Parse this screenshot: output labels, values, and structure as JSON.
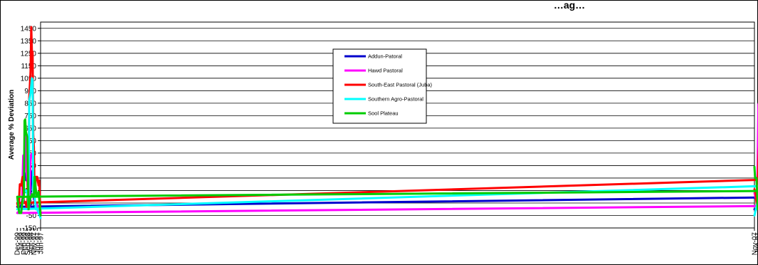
{
  "chart_data": {
    "type": "line",
    "title": "…ag…",
    "ylabel": "Average % Deviation",
    "xlabel": "",
    "ylim": [
      -150,
      1500
    ],
    "y_ticks": [
      -150,
      -50,
      50,
      150,
      250,
      350,
      450,
      550,
      650,
      750,
      850,
      950,
      1050,
      1150,
      1250,
      1350,
      1450
    ],
    "x_tick_labels": [
      "Jan-97",
      "Jun-97",
      "Nov-97",
      "Apr-98",
      "Sep-98",
      "Feb-99",
      "Jul-99",
      "Dec-99",
      "May-00",
      "Oct-00",
      "Mar-01",
      "Aug-01",
      "Jan-02",
      "Jun-02",
      "Nov-02",
      "Apr-03",
      "Sep-03",
      "Feb-04",
      "Jul-04",
      "Dec-04",
      "May-05",
      "Oct-05",
      "Mar-06",
      "Aug-06",
      "Jan-07",
      "Jun-07",
      "Nov-07"
    ],
    "grid": "horizontal",
    "legend_position": "top-center",
    "series": [
      {
        "name": "Addun-Patoral",
        "color": "#0000CC",
        "points": [
          [
            "Jan-97",
            -50
          ],
          [
            "Jun-97",
            30
          ],
          [
            "Nov-97",
            80
          ],
          [
            "Jan-98",
            310
          ],
          [
            "Mar-98",
            250
          ],
          [
            "May-98",
            30
          ],
          [
            "Jul-98",
            0
          ],
          [
            "Sep-98",
            270
          ],
          [
            "Oct-98",
            230
          ],
          [
            "Dec-98",
            280
          ],
          [
            "Feb-99",
            300
          ],
          [
            "Mar-99",
            120
          ],
          [
            "Jul-99",
            10
          ],
          [
            "Dec-99",
            20
          ],
          [
            "Mar-00",
            100
          ],
          [
            "May-00",
            90
          ],
          [
            "Aug-00",
            40
          ],
          [
            "Oct-00",
            0
          ],
          [
            "Mar-01",
            -10
          ],
          [
            "Aug-01",
            -20
          ],
          [
            "Jan-02",
            0
          ],
          [
            "Jun-02",
            0
          ],
          [
            "Nov-02",
            40
          ],
          [
            "Apr-03",
            30
          ],
          [
            "Sep-03",
            -10
          ],
          [
            "Feb-04",
            60
          ],
          [
            "Jul-04",
            -10
          ],
          [
            "Dec-04",
            0
          ],
          [
            "May-05",
            0
          ],
          [
            "Oct-05",
            -30
          ],
          [
            "Mar-06",
            0
          ],
          [
            "Aug-06",
            10
          ],
          [
            "Nov-06",
            210
          ],
          [
            "Jan-07",
            180
          ],
          [
            "Apr-07",
            150
          ],
          [
            "Jun-07",
            0
          ],
          [
            "Nov-07",
            0
          ]
        ]
      },
      {
        "name": "Hawd Pastoral",
        "color": "#FF00FF",
        "points": [
          [
            "Jan-97",
            -30
          ],
          [
            "Jun-97",
            30
          ],
          [
            "Oct-97",
            50
          ],
          [
            "Dec-97",
            450
          ],
          [
            "Mar-98",
            440
          ],
          [
            "Apr-98",
            380
          ],
          [
            "Jun-98",
            0
          ],
          [
            "Sep-98",
            230
          ],
          [
            "Nov-98",
            350
          ],
          [
            "Dec-98",
            600
          ],
          [
            "Jan-99",
            440
          ],
          [
            "Mar-99",
            430
          ],
          [
            "May-99",
            10
          ],
          [
            "Dec-99",
            -30
          ],
          [
            "May-00",
            30
          ],
          [
            "Oct-00",
            -30
          ],
          [
            "Mar-01",
            -10
          ],
          [
            "Aug-01",
            -40
          ],
          [
            "Jan-02",
            -20
          ],
          [
            "Jun-02",
            0
          ],
          [
            "Nov-02",
            -20
          ],
          [
            "Apr-03",
            -10
          ],
          [
            "Sep-03",
            0
          ],
          [
            "Jan-04",
            450
          ],
          [
            "Apr-04",
            460
          ],
          [
            "May-04",
            480
          ],
          [
            "Jun-04",
            -10
          ],
          [
            "Dec-04",
            20
          ],
          [
            "May-05",
            0
          ],
          [
            "Oct-05",
            -30
          ],
          [
            "Mar-06",
            20
          ],
          [
            "Sep-06",
            50
          ],
          [
            "Nov-06",
            960
          ],
          [
            "Jan-07",
            900
          ],
          [
            "May-07",
            840
          ],
          [
            "Jul-07",
            50
          ],
          [
            "Nov-07",
            130
          ]
        ]
      },
      {
        "name": "South-East Pastoral (Juba)",
        "color": "#FF0000",
        "points": [
          [
            "Jan-97",
            -50
          ],
          [
            "Mar-97",
            230
          ],
          [
            "Apr-97",
            190
          ],
          [
            "Jun-97",
            260
          ],
          [
            "Aug-97",
            260
          ],
          [
            "Oct-97",
            90
          ],
          [
            "Nov-97",
            500
          ],
          [
            "Dec-97",
            600
          ],
          [
            "Jan-98",
            1260
          ],
          [
            "Feb-98",
            1270
          ],
          [
            "Mar-98",
            1460
          ],
          [
            "Apr-98",
            1100
          ],
          [
            "Jun-98",
            900
          ],
          [
            "Jul-98",
            0
          ],
          [
            "Aug-98",
            250
          ],
          [
            "Sep-98",
            0
          ],
          [
            "Dec-98",
            60
          ],
          [
            "Feb-99",
            50
          ],
          [
            "Apr-99",
            260
          ],
          [
            "Jun-99",
            190
          ],
          [
            "Aug-99",
            200
          ],
          [
            "Oct-99",
            0
          ],
          [
            "Dec-99",
            50
          ],
          [
            "Mar-00",
            250
          ],
          [
            "Apr-00",
            310
          ],
          [
            "Jun-00",
            200
          ],
          [
            "Aug-00",
            50
          ],
          [
            "Oct-00",
            100
          ],
          [
            "Feb-01",
            200
          ],
          [
            "Apr-01",
            280
          ],
          [
            "Jun-01",
            180
          ],
          [
            "Aug-01",
            0
          ],
          [
            "Jan-02",
            50
          ],
          [
            "Apr-02",
            230
          ],
          [
            "Jun-02",
            180
          ],
          [
            "Aug-02",
            0
          ],
          [
            "Nov-02",
            200
          ],
          [
            "Jan-03",
            310
          ],
          [
            "Feb-03",
            260
          ],
          [
            "Jun-03",
            160
          ],
          [
            "Aug-03",
            0
          ],
          [
            "Sep-03",
            200
          ],
          [
            "Dec-03",
            320
          ],
          [
            "Jan-04",
            300
          ],
          [
            "Mar-04",
            350
          ],
          [
            "Apr-04",
            250
          ],
          [
            "Jun-04",
            0
          ],
          [
            "Aug-04",
            0
          ],
          [
            "Oct-04",
            200
          ],
          [
            "Feb-05",
            290
          ],
          [
            "Apr-05",
            200
          ],
          [
            "May-05",
            30
          ],
          [
            "Jul-05",
            -40
          ],
          [
            "Oct-05",
            0
          ],
          [
            "Jan-06",
            100
          ],
          [
            "Mar-06",
            270
          ],
          [
            "May-06",
            270
          ],
          [
            "Aug-06",
            50
          ],
          [
            "Oct-06",
            350
          ],
          [
            "Jan-07",
            570
          ],
          [
            "Mar-07",
            630
          ],
          [
            "May-07",
            400
          ],
          [
            "Jul-07",
            0
          ],
          [
            "Sep-07",
            120
          ],
          [
            "Nov-07",
            160
          ]
        ]
      },
      {
        "name": "Southern Agro-Pastoral",
        "color": "#00FFFF",
        "points": [
          [
            "Jan-97",
            -70
          ],
          [
            "Jun-97",
            0
          ],
          [
            "Aug-97",
            0
          ],
          [
            "Oct-97",
            100
          ],
          [
            "Dec-97",
            150
          ],
          [
            "Jan-98",
            1040
          ],
          [
            "Feb-98",
            1050
          ],
          [
            "Apr-98",
            930
          ],
          [
            "Jun-98",
            870
          ],
          [
            "Jul-98",
            0
          ],
          [
            "Aug-98",
            100
          ],
          [
            "Oct-98",
            150
          ],
          [
            "Jan-99",
            150
          ],
          [
            "Mar-99",
            80
          ],
          [
            "Jun-99",
            0
          ],
          [
            "Dec-99",
            0
          ],
          [
            "Jan-00",
            200
          ],
          [
            "Mar-00",
            160
          ],
          [
            "May-00",
            190
          ],
          [
            "Jul-00",
            100
          ],
          [
            "Aug-00",
            -30
          ],
          [
            "Oct-00",
            -10
          ],
          [
            "Mar-01",
            -50
          ],
          [
            "Aug-01",
            -80
          ],
          [
            "Jan-02",
            -50
          ],
          [
            "Jun-02",
            -40
          ],
          [
            "Nov-02",
            -50
          ],
          [
            "Jan-03",
            10
          ],
          [
            "Apr-03",
            0
          ],
          [
            "Sep-03",
            -70
          ],
          [
            "Jan-04",
            150
          ],
          [
            "Apr-04",
            140
          ],
          [
            "Jun-04",
            0
          ],
          [
            "Aug-04",
            20
          ],
          [
            "Dec-04",
            -20
          ],
          [
            "May-05",
            0
          ],
          [
            "Aug-05",
            -30
          ],
          [
            "Jan-06",
            -100
          ],
          [
            "Mar-06",
            100
          ],
          [
            "Jul-06",
            160
          ],
          [
            "Aug-06",
            50
          ],
          [
            "Nov-06",
            200
          ],
          [
            "Jan-07",
            200
          ],
          [
            "Jul-07",
            40
          ],
          [
            "Nov-07",
            -50
          ]
        ]
      },
      {
        "name": "Sool Plateau",
        "color": "#00CC00",
        "points": [
          [
            "Jan-97",
            -50
          ],
          [
            "Apr-97",
            140
          ],
          [
            "Jul-97",
            100
          ],
          [
            "Oct-97",
            260
          ],
          [
            "Nov-97",
            110
          ],
          [
            "Feb-98",
            120
          ],
          [
            "May-98",
            80
          ],
          [
            "Jul-98",
            0
          ],
          [
            "Sep-98",
            580
          ],
          [
            "Nov-98",
            620
          ],
          [
            "Dec-98",
            720
          ],
          [
            "Jan-99",
            710
          ],
          [
            "Feb-99",
            100
          ],
          [
            "Apr-99",
            80
          ],
          [
            "Jun-99",
            -30
          ],
          [
            "Sep-99",
            -30
          ],
          [
            "Dec-99",
            100
          ],
          [
            "Mar-00",
            150
          ],
          [
            "Jun-00",
            160
          ],
          [
            "Aug-00",
            100
          ],
          [
            "Oct-00",
            130
          ],
          [
            "Jan-01",
            0
          ],
          [
            "Mar-01",
            -40
          ],
          [
            "Aug-01",
            -60
          ],
          [
            "Jan-02",
            -30
          ],
          [
            "Jun-02",
            -50
          ],
          [
            "Nov-02",
            -40
          ],
          [
            "Apr-03",
            -10
          ],
          [
            "Sep-03",
            -30
          ],
          [
            "Jan-04",
            -10
          ],
          [
            "Jun-04",
            -50
          ],
          [
            "Aug-04",
            300
          ],
          [
            "Oct-04",
            290
          ],
          [
            "Nov-04",
            590
          ],
          [
            "Dec-04",
            0
          ],
          [
            "May-05",
            -10
          ],
          [
            "Oct-05",
            -20
          ],
          [
            "Mar-06",
            0
          ],
          [
            "Jul-06",
            100
          ],
          [
            "Aug-06",
            330
          ],
          [
            "Oct-06",
            450
          ],
          [
            "Nov-06",
            100
          ],
          [
            "Feb-07",
            80
          ],
          [
            "Jun-07",
            0
          ],
          [
            "Aug-07",
            250
          ],
          [
            "Oct-07",
            250
          ],
          [
            "Nov-07",
            340
          ]
        ]
      }
    ]
  }
}
